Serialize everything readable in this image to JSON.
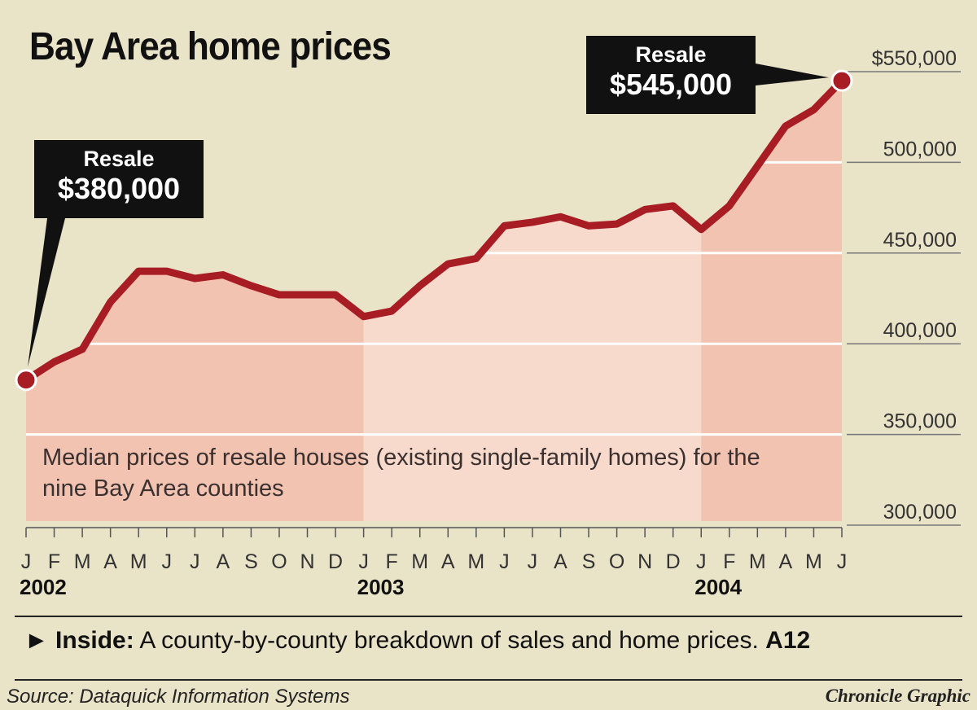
{
  "chart_data": {
    "type": "area",
    "title": "Bay Area home prices",
    "subtitle": "Median prices of resale houses (existing single-family homes) for the nine Bay Area counties",
    "x": [
      "J",
      "F",
      "M",
      "A",
      "M",
      "J",
      "J",
      "A",
      "S",
      "O",
      "N",
      "D",
      "J",
      "F",
      "M",
      "A",
      "M",
      "J",
      "J",
      "A",
      "S",
      "O",
      "N",
      "D",
      "J",
      "F",
      "M",
      "A",
      "M",
      "J"
    ],
    "years": [
      {
        "label": "2002",
        "start_index": 0
      },
      {
        "label": "2003",
        "start_index": 12
      },
      {
        "label": "2004",
        "start_index": 24
      }
    ],
    "values": [
      380000,
      390000,
      397000,
      423000,
      440000,
      440000,
      436000,
      438000,
      432000,
      427000,
      427000,
      427000,
      415000,
      418000,
      432000,
      444000,
      447000,
      465000,
      467000,
      470000,
      465000,
      466000,
      474000,
      476000,
      463000,
      476000,
      498000,
      520000,
      529000,
      545000
    ],
    "ylim": [
      300000,
      550000
    ],
    "yticks": [
      300000,
      350000,
      400000,
      450000,
      500000,
      550000
    ],
    "ytick_labels": [
      "300,000",
      "350,000",
      "400,000",
      "450,000",
      "500,000",
      "$550,000"
    ],
    "grid": true,
    "annotations": [
      {
        "label": "Resale",
        "value_label": "$380,000",
        "index": 0
      },
      {
        "label": "Resale",
        "value_label": "$545,000",
        "index": 29
      }
    ],
    "colors": {
      "background": "#e9e3c8",
      "line": "#a81c24",
      "fill_dark": "#f2c3b1",
      "fill_light": "#f8dacc",
      "grid": "#ffffff",
      "callout": "#111111"
    }
  },
  "footer": {
    "inside_label": "Inside:",
    "inside_text": " A county-by-county breakdown of sales and home prices. ",
    "inside_page": "A12",
    "source": "Source: Dataquick Information Systems",
    "credit": "Chronicle Graphic"
  }
}
